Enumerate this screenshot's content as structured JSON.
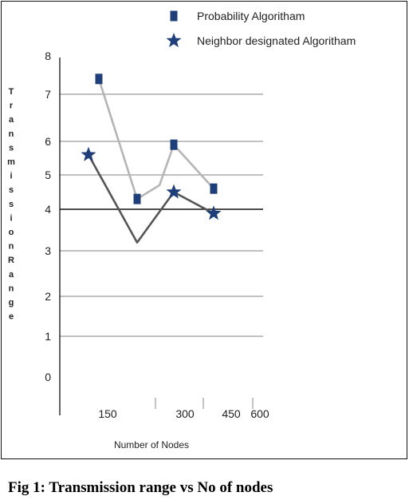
{
  "caption": "Fig 1: Transmission range vs No of nodes",
  "chart_data": {
    "type": "line",
    "title": "",
    "xlabel": "Number of Nodes",
    "ylabel": "TransmissionRange",
    "x_ticks": [
      "150",
      "300",
      "450",
      "600"
    ],
    "y_ticks": [
      "0",
      "1",
      "2",
      "3",
      "4",
      "5",
      "6",
      "7",
      "8"
    ],
    "ylim": [
      0,
      8
    ],
    "grid": true,
    "legend": "top-right",
    "series": [
      {
        "name": "Probability Algoritham",
        "marker": "square",
        "color": "#1f3f7a",
        "line_color": "#b5b5b5",
        "points": [
          {
            "x": 150,
            "y": 7.4,
            "marker": true
          },
          {
            "x": 210,
            "y": 4.3,
            "marker": true
          },
          {
            "x": 250,
            "y": 4.7,
            "marker": false
          },
          {
            "x": 300,
            "y": 5.9,
            "marker": true
          },
          {
            "x": 380,
            "y": 4.6,
            "marker": true
          }
        ]
      },
      {
        "name": "Neighbor designated Algoritham",
        "marker": "star",
        "color": "#1f3f7a",
        "line_color": "#555555",
        "points": [
          {
            "x": 135,
            "y": 5.6,
            "marker": true
          },
          {
            "x": 210,
            "y": 3.2,
            "marker": false
          },
          {
            "x": 300,
            "y": 4.5,
            "marker": true
          },
          {
            "x": 380,
            "y": 3.9,
            "marker": true
          }
        ]
      }
    ]
  }
}
